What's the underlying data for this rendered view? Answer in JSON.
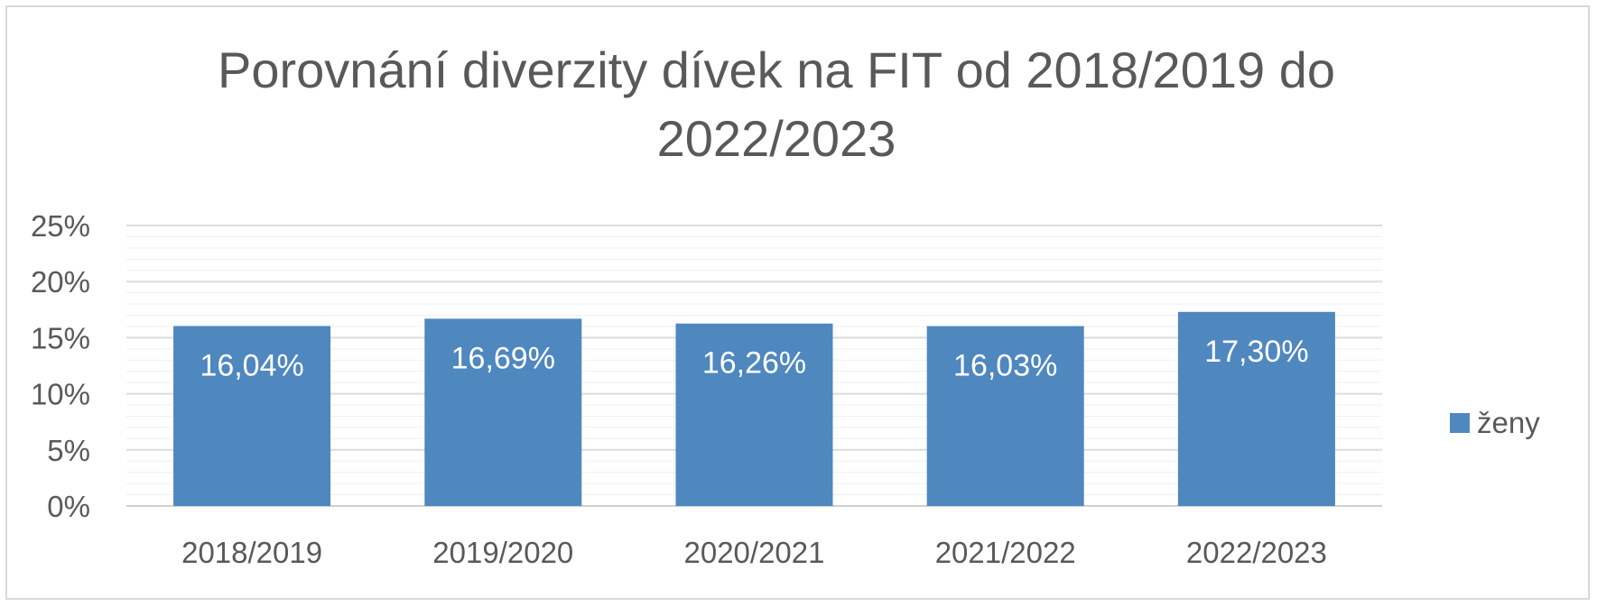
{
  "chart_data": {
    "type": "bar",
    "title": "Porovnání diverzity dívek na FIT od 2018/2019 do 2022/2023",
    "categories": [
      "2018/2019",
      "2019/2020",
      "2020/2021",
      "2021/2022",
      "2022/2023"
    ],
    "series": [
      {
        "name": "ženy",
        "values": [
          16.04,
          16.69,
          16.26,
          16.03,
          17.3
        ],
        "labels": [
          "16,04%",
          "16,69%",
          "16,26%",
          "16,03%",
          "17,30%"
        ],
        "color": "#4f87bf"
      }
    ],
    "ylim": [
      0,
      25
    ],
    "yticks": [
      0,
      5,
      10,
      15,
      20,
      25
    ],
    "ytick_labels": [
      "0%",
      "5%",
      "10%",
      "15%",
      "20%",
      "25%"
    ],
    "grid": true,
    "legend": "right"
  }
}
